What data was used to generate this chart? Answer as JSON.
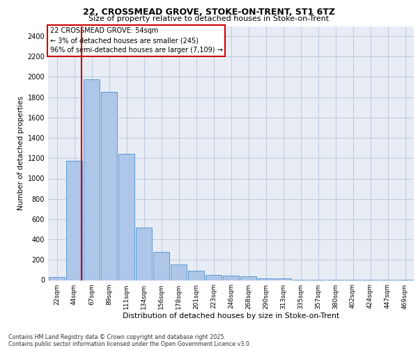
{
  "title": "22, CROSSMEAD GROVE, STOKE-ON-TRENT, ST1 6TZ",
  "subtitle": "Size of property relative to detached houses in Stoke-on-Trent",
  "xlabel": "Distribution of detached houses by size in Stoke-on-Trent",
  "ylabel": "Number of detached properties",
  "categories": [
    "22sqm",
    "44sqm",
    "67sqm",
    "89sqm",
    "111sqm",
    "134sqm",
    "156sqm",
    "178sqm",
    "201sqm",
    "223sqm",
    "246sqm",
    "268sqm",
    "290sqm",
    "313sqm",
    "335sqm",
    "357sqm",
    "380sqm",
    "402sqm",
    "424sqm",
    "447sqm",
    "469sqm"
  ],
  "values": [
    30,
    1175,
    1975,
    1850,
    1240,
    515,
    275,
    155,
    90,
    50,
    45,
    35,
    20,
    15,
    5,
    5,
    5,
    5,
    5,
    5,
    5
  ],
  "bar_color": "#aec6e8",
  "bar_edge_color": "#5b9bd5",
  "annotation_box_text": "22 CROSSMEAD GROVE: 54sqm\n← 3% of detached houses are smaller (245)\n96% of semi-detached houses are larger (7,109) →",
  "annotation_box_color": "#cc0000",
  "vline_color": "#cc0000",
  "footer_text": "Contains HM Land Registry data © Crown copyright and database right 2025.\nContains public sector information licensed under the Open Government Licence v3.0.",
  "background_color": "#e8edf5",
  "ylim": [
    0,
    2500
  ],
  "yticks": [
    0,
    200,
    400,
    600,
    800,
    1000,
    1200,
    1400,
    1600,
    1800,
    2000,
    2200,
    2400
  ]
}
